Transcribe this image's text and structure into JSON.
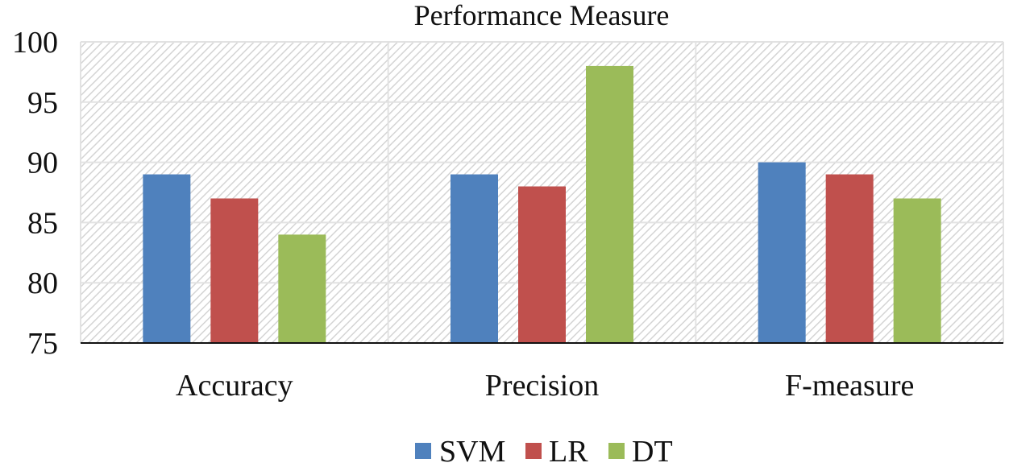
{
  "chart_data": {
    "type": "bar",
    "title": "Performance Measure",
    "categories": [
      "Accuracy",
      "Precision",
      "F-measure"
    ],
    "series": [
      {
        "name": "SVM",
        "values": [
          89,
          89,
          90
        ],
        "color": "#4F81BD"
      },
      {
        "name": "LR",
        "values": [
          87,
          88,
          89
        ],
        "color": "#C0504D"
      },
      {
        "name": "DT",
        "values": [
          84,
          98,
          87
        ],
        "color": "#9BBB59"
      }
    ],
    "ylim": [
      75,
      100
    ],
    "yticks": [
      75,
      80,
      85,
      90,
      95,
      100
    ],
    "xlabel": "",
    "ylabel": "",
    "grid": true,
    "legend": "bottom"
  }
}
